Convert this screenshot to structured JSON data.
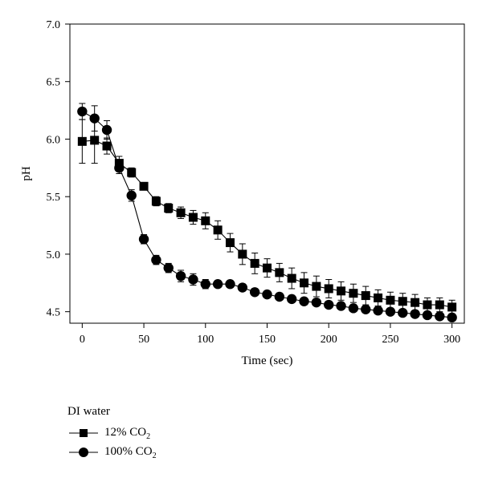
{
  "chart_data": {
    "type": "scatter",
    "xlabel": "Time (sec)",
    "ylabel": "pH",
    "xlim": [
      -10,
      310
    ],
    "ylim": [
      4.4,
      7.0
    ],
    "xticks": [
      0,
      50,
      100,
      150,
      200,
      250,
      300
    ],
    "yticks": [
      4.5,
      5.0,
      5.5,
      6.0,
      6.5,
      7.0
    ],
    "ytick_labels": [
      "4.5",
      "5.0",
      "5.5",
      "6.0",
      "6.5",
      "7.0"
    ],
    "grid": false,
    "legend_placement": "below-left",
    "legend_title": "DI water",
    "series": [
      {
        "name_prefix": "12% CO",
        "name_subscript": "2",
        "marker": "square",
        "color": "#000000",
        "x": [
          0,
          10,
          20,
          30,
          40,
          50,
          60,
          70,
          80,
          90,
          100,
          110,
          120,
          130,
          140,
          150,
          160,
          170,
          180,
          190,
          200,
          210,
          220,
          230,
          240,
          250,
          260,
          270,
          280,
          290,
          300
        ],
        "y": [
          5.98,
          5.99,
          5.94,
          5.79,
          5.71,
          5.59,
          5.46,
          5.4,
          5.36,
          5.32,
          5.29,
          5.21,
          5.1,
          5.0,
          4.92,
          4.88,
          4.84,
          4.79,
          4.75,
          4.72,
          4.7,
          4.68,
          4.66,
          4.64,
          4.62,
          4.6,
          4.59,
          4.58,
          4.56,
          4.56,
          4.54
        ],
        "err": [
          0.19,
          0.2,
          0.07,
          0.06,
          0.04,
          0.03,
          0.04,
          0.04,
          0.05,
          0.06,
          0.07,
          0.08,
          0.08,
          0.09,
          0.09,
          0.08,
          0.08,
          0.09,
          0.09,
          0.09,
          0.08,
          0.08,
          0.08,
          0.08,
          0.07,
          0.07,
          0.07,
          0.07,
          0.06,
          0.06,
          0.06
        ]
      },
      {
        "name_prefix": "100% CO",
        "name_subscript": "2",
        "marker": "circle",
        "color": "#000000",
        "x": [
          0,
          10,
          20,
          30,
          40,
          50,
          60,
          70,
          80,
          90,
          100,
          110,
          120,
          130,
          140,
          150,
          160,
          170,
          180,
          190,
          200,
          210,
          220,
          230,
          240,
          250,
          260,
          270,
          280,
          290,
          300
        ],
        "y": [
          6.24,
          6.18,
          6.08,
          5.75,
          5.51,
          5.13,
          4.95,
          4.88,
          4.81,
          4.78,
          4.74,
          4.74,
          4.74,
          4.71,
          4.67,
          4.65,
          4.63,
          4.61,
          4.59,
          4.58,
          4.56,
          4.55,
          4.53,
          4.52,
          4.51,
          4.5,
          4.49,
          4.48,
          4.47,
          4.46,
          4.45
        ],
        "err": [
          0.07,
          0.11,
          0.08,
          0.05,
          0.05,
          0.04,
          0.04,
          0.04,
          0.05,
          0.05,
          0.04,
          0.03,
          0.03,
          0.03,
          0.02,
          0.02,
          0.02,
          0.02,
          0.02,
          0.02,
          0.02,
          0.02,
          0.02,
          0.02,
          0.02,
          0.02,
          0.02,
          0.02,
          0.02,
          0.02,
          0.02
        ]
      }
    ]
  }
}
